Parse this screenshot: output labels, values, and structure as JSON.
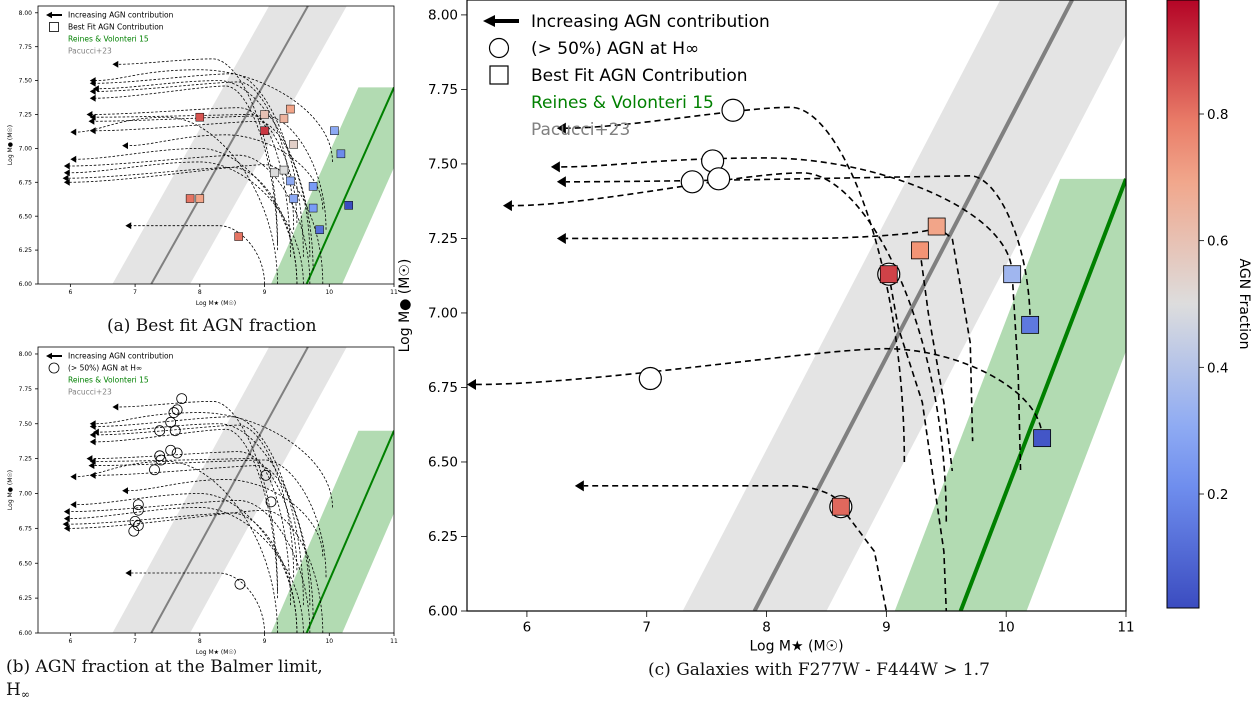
{
  "captions": {
    "a": "(a) Best fit AGN fraction",
    "b_line1": "(b) AGN fraction at the Balmer limit,",
    "b_line2": "H",
    "b_line2_sub": "∞",
    "c": "(c) Galaxies with F277W - F444W > 1.7"
  },
  "legend": {
    "arrow": "Increasing AGN contribution",
    "circle": "(> 50%) AGN at H∞",
    "square": "Best Fit AGN Contribution",
    "reines": "Reines & Volonteri 15",
    "pacucci": "Pacucci+23"
  },
  "colors": {
    "reines": "#008000",
    "reines_band": "#b2dbb2",
    "pacucci": "#808080",
    "pacucci_band": "#e4e4e4"
  },
  "chart_data": [
    {
      "id": "a",
      "type": "scatter",
      "xlabel": "Log M★ (M☉)",
      "ylabel": "Log M● (M☉)",
      "xlim": [
        5.5,
        11
      ],
      "ylim": [
        6.0,
        8.05
      ],
      "xticks": [
        6,
        7,
        8,
        9,
        10,
        11
      ],
      "yticks": [
        6.0,
        6.25,
        6.5,
        6.75,
        7.0,
        7.25,
        7.5,
        7.75,
        8.0
      ],
      "legend_items": [
        "arrow",
        "square",
        "reines",
        "pacucci"
      ],
      "relations": [
        {
          "name": "Pacucci+23",
          "x": [
            7.25,
            9.67
          ],
          "y": [
            6.0,
            8.05
          ]
        },
        {
          "name": "Reines & Volonteri 15",
          "x": [
            9.65,
            11.0
          ],
          "y": [
            6.0,
            7.45
          ]
        }
      ],
      "tracks": [
        {
          "arrow_x": 6.65,
          "arrow_y": 7.62,
          "peak_x": 8.2,
          "peak_y": 7.66,
          "end_x": 9.2,
          "end_y": 6.3
        },
        {
          "arrow_x": 6.3,
          "arrow_y": 7.5,
          "peak_x": 8.0,
          "peak_y": 7.58,
          "end_x": 10.05,
          "end_y": 6.9
        },
        {
          "arrow_x": 6.3,
          "arrow_y": 7.48,
          "peak_x": 8.5,
          "peak_y": 7.55,
          "end_x": 9.6,
          "end_y": 6.2
        },
        {
          "arrow_x": 6.35,
          "arrow_y": 7.44,
          "peak_x": 8.3,
          "peak_y": 7.5,
          "end_x": 9.75,
          "end_y": 6.1
        },
        {
          "arrow_x": 6.3,
          "arrow_y": 7.42,
          "peak_x": 8.6,
          "peak_y": 7.49,
          "end_x": 9.45,
          "end_y": 6.4
        },
        {
          "arrow_x": 6.3,
          "arrow_y": 7.37,
          "peak_x": 8.4,
          "peak_y": 7.46,
          "end_x": 9.2,
          "end_y": 6.25
        },
        {
          "arrow_x": 6.25,
          "arrow_y": 7.25,
          "peak_x": 8.6,
          "peak_y": 7.3,
          "end_x": 9.5,
          "end_y": 6.45
        },
        {
          "arrow_x": 6.3,
          "arrow_y": 7.23,
          "peak_x": 8.8,
          "peak_y": 7.25,
          "end_x": 9.4,
          "end_y": 6.2
        },
        {
          "arrow_x": 6.28,
          "arrow_y": 7.2,
          "peak_x": 9.0,
          "peak_y": 7.24,
          "end_x": 9.95,
          "end_y": 6.4
        },
        {
          "arrow_x": 6.0,
          "arrow_y": 7.12,
          "peak_x": 7.5,
          "peak_y": 7.23,
          "end_x": 9.2,
          "end_y": 6.0
        },
        {
          "arrow_x": 6.3,
          "arrow_y": 7.13,
          "peak_x": 8.9,
          "peak_y": 7.2,
          "end_x": 9.7,
          "end_y": 6.2
        },
        {
          "arrow_x": 6.8,
          "arrow_y": 7.02,
          "peak_x": 8.4,
          "peak_y": 7.1,
          "end_x": 9.9,
          "end_y": 6.55
        },
        {
          "arrow_x": 6.0,
          "arrow_y": 6.92,
          "peak_x": 8.0,
          "peak_y": 7.0,
          "end_x": 9.5,
          "end_y": 6.0
        },
        {
          "arrow_x": 5.9,
          "arrow_y": 6.87,
          "peak_x": 8.6,
          "peak_y": 6.95,
          "end_x": 9.7,
          "end_y": 6.0
        },
        {
          "arrow_x": 5.9,
          "arrow_y": 6.82,
          "peak_x": 8.0,
          "peak_y": 6.9,
          "end_x": 9.6,
          "end_y": 6.0
        },
        {
          "arrow_x": 5.88,
          "arrow_y": 6.78,
          "peak_x": 8.5,
          "peak_y": 6.86,
          "end_x": 9.5,
          "end_y": 6.0
        },
        {
          "arrow_x": 5.9,
          "arrow_y": 6.75,
          "peak_x": 9.0,
          "peak_y": 6.88,
          "end_x": 9.9,
          "end_y": 6.0
        },
        {
          "arrow_x": 6.85,
          "arrow_y": 6.43,
          "peak_x": 8.3,
          "peak_y": 6.43,
          "end_x": 9.0,
          "end_y": 6.0
        }
      ],
      "squares": [
        {
          "x": 9.4,
          "y": 7.29,
          "f": 0.7
        },
        {
          "x": 9.0,
          "y": 7.25,
          "f": 0.6
        },
        {
          "x": 9.3,
          "y": 7.22,
          "f": 0.65
        },
        {
          "x": 8.0,
          "y": 7.23,
          "f": 0.85
        },
        {
          "x": 9.0,
          "y": 7.13,
          "f": 0.9
        },
        {
          "x": 10.08,
          "y": 7.13,
          "f": 0.3
        },
        {
          "x": 9.45,
          "y": 7.03,
          "f": 0.55
        },
        {
          "x": 10.18,
          "y": 6.96,
          "f": 0.2
        },
        {
          "x": 9.15,
          "y": 6.82,
          "f": 0.5
        },
        {
          "x": 9.3,
          "y": 6.84,
          "f": 0.5
        },
        {
          "x": 9.4,
          "y": 6.76,
          "f": 0.3
        },
        {
          "x": 9.75,
          "y": 6.72,
          "f": 0.25
        },
        {
          "x": 9.45,
          "y": 6.63,
          "f": 0.3
        },
        {
          "x": 9.75,
          "y": 6.56,
          "f": 0.25
        },
        {
          "x": 7.85,
          "y": 6.63,
          "f": 0.8
        },
        {
          "x": 8.0,
          "y": 6.63,
          "f": 0.7
        },
        {
          "x": 9.85,
          "y": 6.4,
          "f": 0.12
        },
        {
          "x": 10.3,
          "y": 6.58,
          "f": 0.02
        },
        {
          "x": 8.6,
          "y": 6.35,
          "f": 0.8
        }
      ]
    },
    {
      "id": "b",
      "type": "scatter",
      "xlabel": "Log M★ (M☉)",
      "ylabel": "Log M● (M☉)",
      "xlim": [
        5.5,
        11
      ],
      "ylim": [
        6.0,
        8.05
      ],
      "xticks": [
        6,
        7,
        8,
        9,
        10,
        11
      ],
      "yticks": [
        6.0,
        6.25,
        6.5,
        6.75,
        7.0,
        7.25,
        7.5,
        7.75,
        8.0
      ],
      "legend_items": [
        "arrow",
        "circle",
        "reines",
        "pacucci"
      ],
      "relations": [
        {
          "name": "Pacucci+23",
          "x": [
            7.25,
            9.67
          ],
          "y": [
            6.0,
            8.05
          ]
        },
        {
          "name": "Reines & Volonteri 15",
          "x": [
            9.65,
            11.0
          ],
          "y": [
            6.0,
            7.45
          ]
        }
      ],
      "tracks": [
        {
          "arrow_x": 6.65,
          "arrow_y": 7.62,
          "peak_x": 8.2,
          "peak_y": 7.66,
          "end_x": 9.2,
          "end_y": 6.3
        },
        {
          "arrow_x": 6.3,
          "arrow_y": 7.5,
          "peak_x": 8.0,
          "peak_y": 7.58,
          "end_x": 10.05,
          "end_y": 6.9
        },
        {
          "arrow_x": 6.3,
          "arrow_y": 7.48,
          "peak_x": 8.5,
          "peak_y": 7.55,
          "end_x": 9.6,
          "end_y": 6.2
        },
        {
          "arrow_x": 6.35,
          "arrow_y": 7.44,
          "peak_x": 8.3,
          "peak_y": 7.5,
          "end_x": 9.75,
          "end_y": 6.1
        },
        {
          "arrow_x": 6.3,
          "arrow_y": 7.42,
          "peak_x": 8.6,
          "peak_y": 7.49,
          "end_x": 9.45,
          "end_y": 6.4
        },
        {
          "arrow_x": 6.3,
          "arrow_y": 7.37,
          "peak_x": 8.4,
          "peak_y": 7.46,
          "end_x": 9.2,
          "end_y": 6.25
        },
        {
          "arrow_x": 6.25,
          "arrow_y": 7.25,
          "peak_x": 8.6,
          "peak_y": 7.3,
          "end_x": 9.5,
          "end_y": 6.45
        },
        {
          "arrow_x": 6.3,
          "arrow_y": 7.23,
          "peak_x": 8.8,
          "peak_y": 7.25,
          "end_x": 9.4,
          "end_y": 6.2
        },
        {
          "arrow_x": 6.28,
          "arrow_y": 7.2,
          "peak_x": 9.0,
          "peak_y": 7.24,
          "end_x": 9.95,
          "end_y": 6.4
        },
        {
          "arrow_x": 6.0,
          "arrow_y": 7.12,
          "peak_x": 7.5,
          "peak_y": 7.23,
          "end_x": 9.2,
          "end_y": 6.0
        },
        {
          "arrow_x": 6.3,
          "arrow_y": 7.13,
          "peak_x": 8.9,
          "peak_y": 7.2,
          "end_x": 9.7,
          "end_y": 6.2
        },
        {
          "arrow_x": 6.8,
          "arrow_y": 7.02,
          "peak_x": 8.4,
          "peak_y": 7.1,
          "end_x": 9.9,
          "end_y": 6.55
        },
        {
          "arrow_x": 6.0,
          "arrow_y": 6.92,
          "peak_x": 8.0,
          "peak_y": 7.0,
          "end_x": 9.5,
          "end_y": 6.0
        },
        {
          "arrow_x": 5.9,
          "arrow_y": 6.87,
          "peak_x": 8.6,
          "peak_y": 6.95,
          "end_x": 9.7,
          "end_y": 6.0
        },
        {
          "arrow_x": 5.9,
          "arrow_y": 6.82,
          "peak_x": 8.0,
          "peak_y": 6.9,
          "end_x": 9.6,
          "end_y": 6.0
        },
        {
          "arrow_x": 5.88,
          "arrow_y": 6.78,
          "peak_x": 8.5,
          "peak_y": 6.86,
          "end_x": 9.5,
          "end_y": 6.0
        },
        {
          "arrow_x": 5.9,
          "arrow_y": 6.75,
          "peak_x": 9.0,
          "peak_y": 6.88,
          "end_x": 9.9,
          "end_y": 6.0
        },
        {
          "arrow_x": 6.85,
          "arrow_y": 6.43,
          "peak_x": 8.3,
          "peak_y": 6.43,
          "end_x": 9.0,
          "end_y": 6.0
        }
      ],
      "circles": [
        {
          "x": 7.72,
          "y": 7.68
        },
        {
          "x": 7.65,
          "y": 7.6
        },
        {
          "x": 7.6,
          "y": 7.58
        },
        {
          "x": 7.55,
          "y": 7.51
        },
        {
          "x": 7.38,
          "y": 7.45
        },
        {
          "x": 7.62,
          "y": 7.45
        },
        {
          "x": 7.55,
          "y": 7.31
        },
        {
          "x": 7.65,
          "y": 7.29
        },
        {
          "x": 7.38,
          "y": 7.27
        },
        {
          "x": 7.4,
          "y": 7.24
        },
        {
          "x": 7.3,
          "y": 7.17
        },
        {
          "x": 9.02,
          "y": 7.13
        },
        {
          "x": 9.1,
          "y": 6.94
        },
        {
          "x": 7.05,
          "y": 6.92
        },
        {
          "x": 7.05,
          "y": 6.88
        },
        {
          "x": 7.0,
          "y": 6.8
        },
        {
          "x": 7.05,
          "y": 6.77
        },
        {
          "x": 6.98,
          "y": 6.73
        },
        {
          "x": 8.62,
          "y": 6.35
        }
      ]
    },
    {
      "id": "c",
      "type": "scatter",
      "xlabel": "Log M★ (M☉)",
      "ylabel": "Log M● (M☉)",
      "xlim": [
        5.5,
        11
      ],
      "ylim": [
        6.0,
        8.05
      ],
      "xticks": [
        6,
        7,
        8,
        9,
        10,
        11
      ],
      "yticks": [
        6.0,
        6.25,
        6.5,
        6.75,
        7.0,
        7.25,
        7.5,
        7.75,
        8.0
      ],
      "legend_items": [
        "arrow",
        "circle",
        "square",
        "reines",
        "pacucci"
      ],
      "relations": [
        {
          "name": "Pacucci+23",
          "x": [
            7.9,
            10.55
          ],
          "y": [
            6.0,
            8.05
          ]
        },
        {
          "name": "Reines & Volonteri 15",
          "x": [
            9.62,
            11.0
          ],
          "y": [
            6.0,
            7.45
          ]
        }
      ],
      "tracks": [
        {
          "arrow_x": 6.25,
          "arrow_y": 7.62,
          "peak_x": 8.2,
          "peak_y": 7.69,
          "end_x": 9.15,
          "end_y": 6.5
        },
        {
          "arrow_x": 6.2,
          "arrow_y": 7.49,
          "peak_x": 8.0,
          "peak_y": 7.52,
          "end_x": 10.05,
          "end_y": 7.13
        },
        {
          "arrow_x": 6.25,
          "arrow_y": 7.44,
          "peak_x": 9.7,
          "peak_y": 7.46,
          "end_x": 10.2,
          "end_y": 6.96
        },
        {
          "arrow_x": 5.8,
          "arrow_y": 7.36,
          "peak_x": 8.3,
          "peak_y": 7.47,
          "end_x": 9.5,
          "end_y": 6.3
        },
        {
          "arrow_x": 6.25,
          "arrow_y": 7.25,
          "peak_x": 8.3,
          "peak_y": 7.25,
          "end_x": 9.42,
          "end_y": 7.29
        },
        {
          "arrow_x": 5.5,
          "arrow_y": 6.76,
          "peak_x": 9.0,
          "peak_y": 6.88,
          "end_x": 10.3,
          "end_y": 6.58
        },
        {
          "arrow_x": 6.4,
          "arrow_y": 6.42,
          "peak_x": 8.2,
          "peak_y": 6.42,
          "end_x": 8.62,
          "end_y": 6.35
        }
      ],
      "extra_tracks": [
        {
          "x": [
            9.02,
            9.1,
            9.3,
            9.48,
            9.5
          ],
          "y": [
            7.13,
            6.95,
            6.7,
            6.2,
            6.0
          ]
        },
        {
          "x": [
            9.28,
            9.35,
            9.48,
            9.55
          ],
          "y": [
            7.21,
            7.0,
            6.7,
            6.47
          ]
        },
        {
          "x": [
            9.42,
            9.55,
            9.7,
            9.72
          ],
          "y": [
            7.29,
            7.25,
            6.9,
            6.57
          ]
        },
        {
          "x": [
            10.05,
            10.1,
            10.12
          ],
          "y": [
            7.13,
            6.8,
            6.47
          ]
        },
        {
          "x": [
            8.62,
            8.9,
            9.0
          ],
          "y": [
            6.35,
            6.2,
            6.0
          ]
        }
      ],
      "circles": [
        {
          "x": 7.72,
          "y": 7.68
        },
        {
          "x": 7.55,
          "y": 7.51
        },
        {
          "x": 7.38,
          "y": 7.44
        },
        {
          "x": 7.6,
          "y": 7.45
        },
        {
          "x": 7.03,
          "y": 6.78
        },
        {
          "x": 9.02,
          "y": 7.13
        },
        {
          "x": 8.62,
          "y": 6.35
        }
      ],
      "squares": [
        {
          "x": 9.42,
          "y": 7.29,
          "f": 0.7
        },
        {
          "x": 9.28,
          "y": 7.21,
          "f": 0.75
        },
        {
          "x": 9.02,
          "y": 7.13,
          "f": 0.88
        },
        {
          "x": 10.05,
          "y": 7.13,
          "f": 0.35
        },
        {
          "x": 10.2,
          "y": 6.96,
          "f": 0.15
        },
        {
          "x": 10.3,
          "y": 6.58,
          "f": 0.05
        },
        {
          "x": 8.62,
          "y": 6.35,
          "f": 0.82
        }
      ]
    }
  ],
  "colorbar": {
    "label": "AGN Fraction",
    "ticks": [
      "0.2",
      "0.4",
      "0.6",
      "0.8"
    ],
    "tick_values": [
      0.2,
      0.4,
      0.6,
      0.8
    ],
    "range": [
      0.02,
      0.98
    ],
    "cmap": "coolwarm"
  }
}
